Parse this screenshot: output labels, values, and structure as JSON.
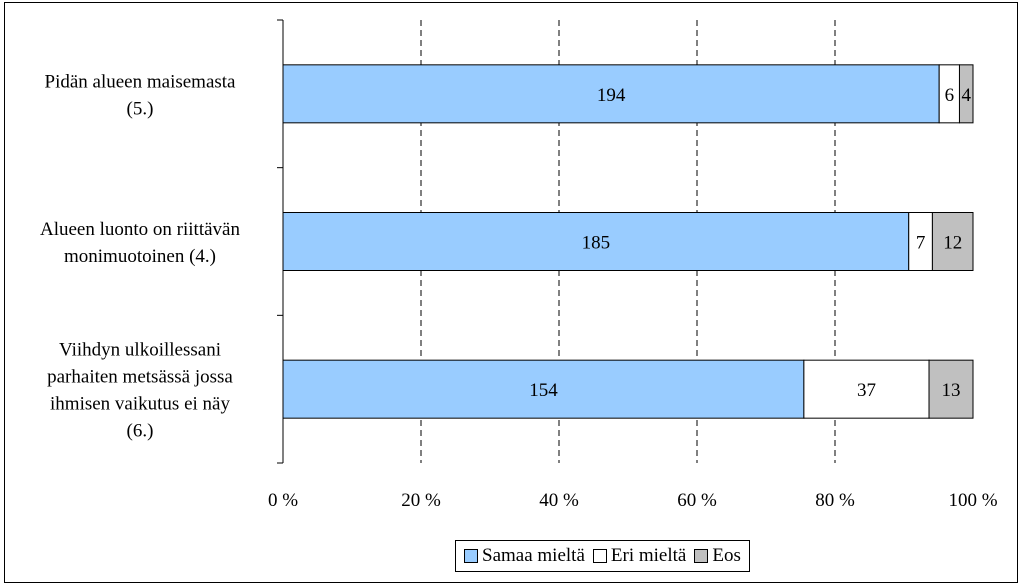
{
  "chart_data": {
    "type": "bar",
    "orientation": "horizontal",
    "stacked": "percent",
    "categories": [
      [
        "Pidän alueen maisemasta",
        "(5.)"
      ],
      [
        "Alueen luonto on riittävän",
        "monimuotoinen (4.)"
      ],
      [
        "Viihdyn ulkoillessani",
        "parhaiten metsässä jossa",
        "ihmisen vaikutus ei näy",
        "(6.)"
      ]
    ],
    "series": [
      {
        "name": "Samaa mieltä",
        "values": [
          194,
          185,
          154
        ],
        "color": "#99ccff"
      },
      {
        "name": "Eri mieltä",
        "values": [
          6,
          7,
          37
        ],
        "color": "#ffffff"
      },
      {
        "name": "Eos",
        "values": [
          4,
          12,
          13
        ],
        "color": "#c0c0c0"
      }
    ],
    "x_ticks": [
      "0 %",
      "20 %",
      "40 %",
      "60 %",
      "80 %",
      "100 %"
    ],
    "xlim": [
      0,
      100
    ],
    "grid": "vertical dashed",
    "legend_position": "bottom"
  }
}
